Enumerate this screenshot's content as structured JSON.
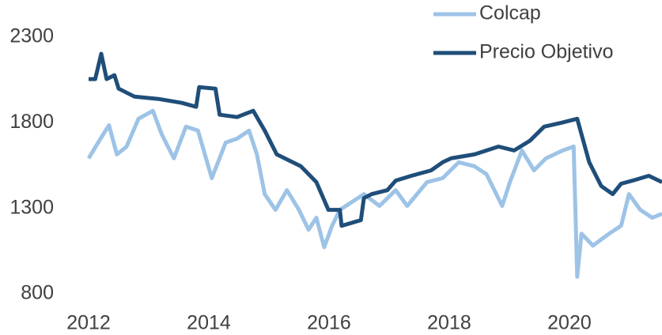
{
  "chart_data": {
    "type": "line",
    "xlim": [
      2012,
      2021.54
    ],
    "xticks": [
      2012,
      2014,
      2016,
      2018,
      2020
    ],
    "ylim": [
      800,
      2300
    ],
    "yticks": [
      800,
      1300,
      1800,
      2300
    ],
    "legend": "top-right",
    "series": [
      {
        "name": "Colcap",
        "color": "#9dc3e6",
        "x": [
          2012.0,
          2012.24,
          2012.34,
          2012.47,
          2012.63,
          2012.83,
          2013.07,
          2013.22,
          2013.42,
          2013.62,
          2013.82,
          2014.05,
          2014.28,
          2014.47,
          2014.67,
          2014.8,
          2014.93,
          2015.11,
          2015.3,
          2015.5,
          2015.66,
          2015.79,
          2015.92,
          2016.05,
          2016.18,
          2016.38,
          2016.58,
          2016.84,
          2017.11,
          2017.3,
          2017.63,
          2017.89,
          2018.16,
          2018.42,
          2018.62,
          2018.88,
          2019.01,
          2019.21,
          2019.41,
          2019.61,
          2019.89,
          2020.07,
          2020.13,
          2020.2,
          2020.39,
          2020.66,
          2020.86,
          2020.99,
          2021.18,
          2021.38,
          2021.54
        ],
        "values": [
          1592,
          1730,
          1786,
          1615,
          1660,
          1823,
          1870,
          1730,
          1592,
          1777,
          1754,
          1476,
          1684,
          1707,
          1754,
          1615,
          1383,
          1291,
          1406,
          1291,
          1175,
          1245,
          1073,
          1198,
          1291,
          1337,
          1383,
          1314,
          1406,
          1314,
          1453,
          1476,
          1569,
          1546,
          1499,
          1314,
          1453,
          1638,
          1522,
          1592,
          1638,
          1661,
          900,
          1152,
          1082,
          1152,
          1198,
          1383,
          1291,
          1245,
          1268
        ]
      },
      {
        "name": "Precio Objetivo",
        "color": "#1f4e79",
        "x": [
          2012.0,
          2012.11,
          2012.21,
          2012.3,
          2012.43,
          2012.5,
          2012.76,
          2013.16,
          2013.55,
          2013.79,
          2013.84,
          2014.11,
          2014.18,
          2014.47,
          2014.74,
          2014.93,
          2015.13,
          2015.53,
          2015.79,
          2015.99,
          2016.18,
          2016.21,
          2016.53,
          2016.58,
          2016.71,
          2016.97,
          2017.11,
          2017.37,
          2017.7,
          2017.89,
          2018.03,
          2018.42,
          2018.82,
          2019.08,
          2019.34,
          2019.58,
          2019.87,
          2020.13,
          2020.33,
          2020.53,
          2020.72,
          2020.86,
          2021.05,
          2021.32,
          2021.54
        ],
        "values": [
          2055,
          2055,
          2203,
          2055,
          2078,
          1999,
          1953,
          1939,
          1916,
          1893,
          2008,
          1999,
          1847,
          1833,
          1870,
          1754,
          1615,
          1546,
          1453,
          1291,
          1291,
          1198,
          1231,
          1360,
          1383,
          1406,
          1462,
          1490,
          1522,
          1569,
          1592,
          1615,
          1661,
          1638,
          1694,
          1777,
          1800,
          1823,
          1569,
          1430,
          1383,
          1444,
          1462,
          1490,
          1453
        ]
      }
    ]
  }
}
